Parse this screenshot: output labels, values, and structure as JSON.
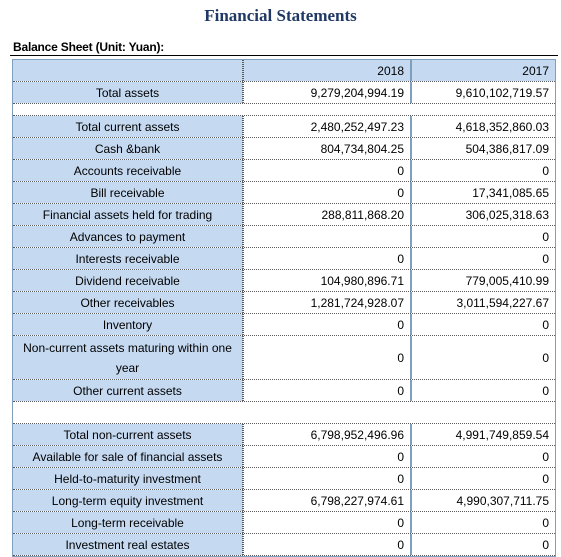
{
  "title": "Financial Statements",
  "sheet_label": "Balance Sheet (Unit: Yuan):",
  "header": {
    "col_2018": "2018",
    "col_2017": "2017"
  },
  "rows_top": [
    {
      "label": "Total assets",
      "v2018": "9,279,204,994.19",
      "v2017": "9,610,102,719.57"
    }
  ],
  "rows_current": [
    {
      "label": "Total current assets",
      "v2018": "2,480,252,497.23",
      "v2017": "4,618,352,860.03"
    },
    {
      "label": "Cash &bank",
      "v2018": "804,734,804.25",
      "v2017": "504,386,817.09"
    },
    {
      "label": "Accounts receivable",
      "v2018": "0",
      "v2017": "0"
    },
    {
      "label": "Bill receivable",
      "v2018": "0",
      "v2017": "17,341,085.65"
    },
    {
      "label": "Financial assets held for trading",
      "v2018": "288,811,868.20",
      "v2017": "306,025,318.63"
    },
    {
      "label": "Advances to payment",
      "v2018": "",
      "v2017": "0"
    },
    {
      "label": "Interests receivable",
      "v2018": "0",
      "v2017": "0"
    },
    {
      "label": "Dividend receivable",
      "v2018": "104,980,896.71",
      "v2017": "779,005,410.99"
    },
    {
      "label": "Other receivables",
      "v2018": "1,281,724,928.07",
      "v2017": "3,011,594,227.67"
    },
    {
      "label": "Inventory",
      "v2018": "0",
      "v2017": "0"
    },
    {
      "label": "Non-current assets maturing within one year",
      "v2018": "0",
      "v2017": "0"
    },
    {
      "label": "Other current assets",
      "v2018": "0",
      "v2017": "0"
    }
  ],
  "rows_noncurrent": [
    {
      "label": "Total non-current assets",
      "v2018": "6,798,952,496.96",
      "v2017": "4,991,749,859.54"
    },
    {
      "label": "Available for sale of financial assets",
      "v2018": "0",
      "v2017": "0"
    },
    {
      "label": "Held-to-maturity investment",
      "v2018": "0",
      "v2017": "0"
    },
    {
      "label": "Long-term equity investment",
      "v2018": "6,798,227,974.61",
      "v2017": "4,990,307,711.75"
    },
    {
      "label": "Long-term receivable",
      "v2018": "0",
      "v2017": "0"
    },
    {
      "label": "Investment real estates",
      "v2018": "0",
      "v2017": "0"
    }
  ]
}
